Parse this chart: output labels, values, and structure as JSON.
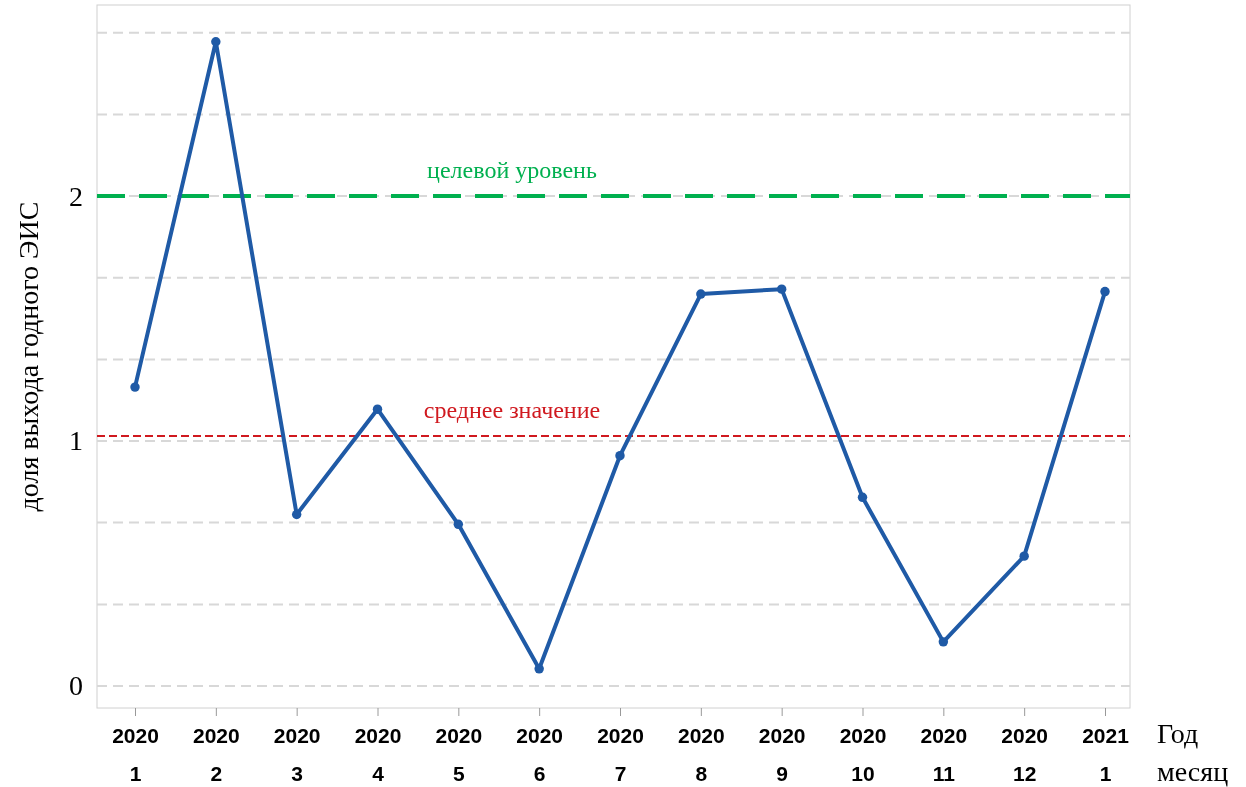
{
  "chart_data": {
    "type": "line",
    "ylabel": "доля выхода годного ЭИС",
    "xlabel": "Год\nмесяц",
    "categories": [
      "2020\n1",
      "2020\n2",
      "2020\n3",
      "2020\n4",
      "2020\n5",
      "2020\n6",
      "2020\n7",
      "2020\n8",
      "2020\n9",
      "2020\n10",
      "2020\n11",
      "2020\n12",
      "2021\n1"
    ],
    "series": [
      {
        "color": "#1f5aa6",
        "values": [
          1.22,
          2.63,
          0.7,
          1.13,
          0.66,
          0.07,
          0.94,
          1.6,
          1.62,
          0.77,
          0.18,
          0.53,
          1.61
        ]
      }
    ],
    "ylim": [
      -0.09,
      2.78
    ],
    "yticks": [
      0,
      {
        "value": 0.333,
        "label": null
      },
      {
        "value": 0.667,
        "label": null
      },
      1,
      {
        "value": 1.333,
        "label": null
      },
      {
        "value": 1.667,
        "label": null
      },
      2,
      {
        "value": 2.333,
        "label": null
      },
      {
        "value": 2.667,
        "label": null
      }
    ],
    "grid": "y",
    "marker": "circle",
    "line_style": "solid",
    "ref_lines": [
      {
        "axis": "y",
        "value": 2,
        "label": "целевой уровень",
        "color": "#00b04f",
        "line_style": "dashed"
      },
      {
        "axis": "y",
        "value": 1.02,
        "label": "среднее значение",
        "color": "#d0191f",
        "line_style": "dashed"
      }
    ]
  }
}
